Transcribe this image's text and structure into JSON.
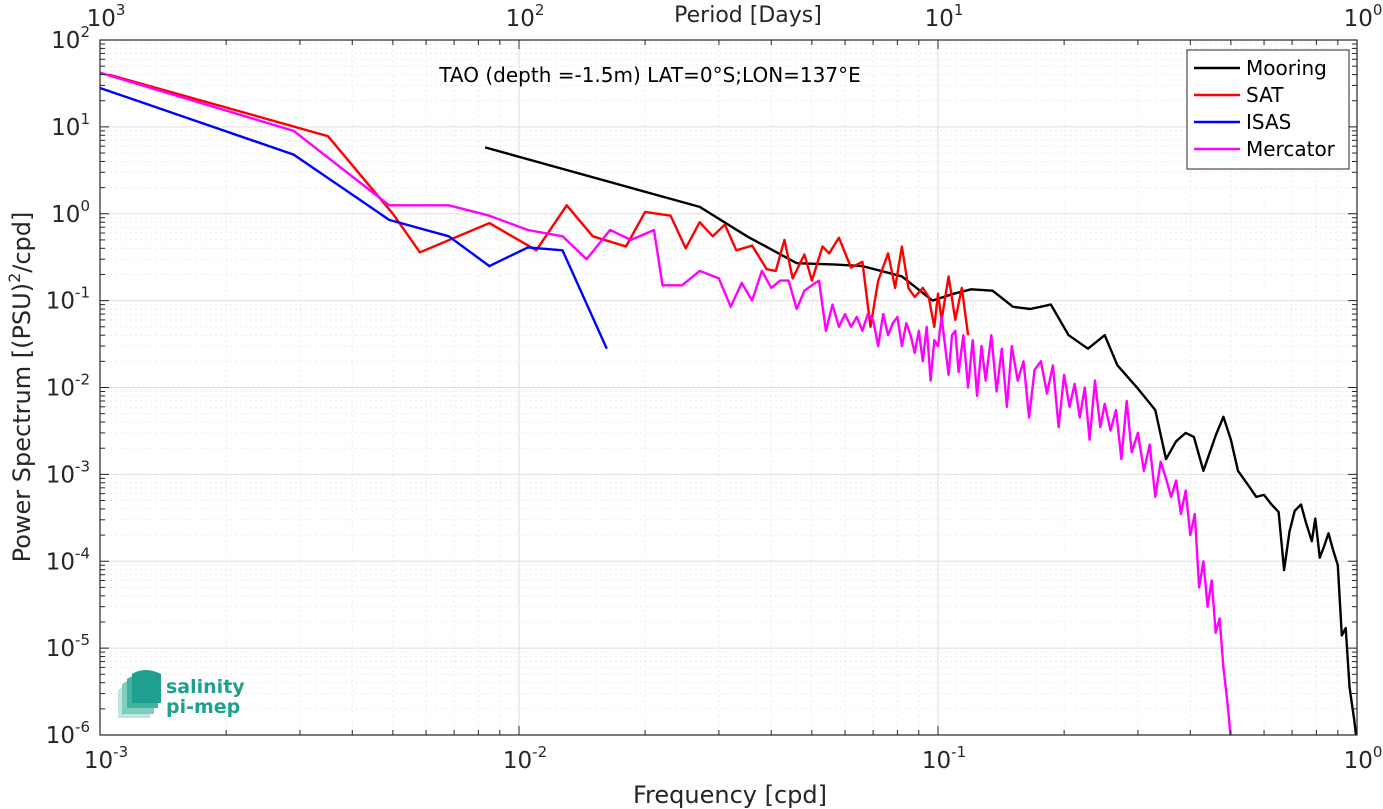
{
  "chart_data": {
    "type": "line",
    "title": "TAO (depth =-1.5m) LAT=0°S;LON=137°E",
    "xlabel": "Frequency [cpd]",
    "ylabel_parts": [
      "Power Spectrum [(PSU)",
      "2",
      "/cpd]"
    ],
    "top_xlabel": "Period [Days]",
    "x_scale": "log",
    "y_scale": "log",
    "xlim": [
      0.001,
      1
    ],
    "ylim": [
      1e-06,
      100
    ],
    "grid": true,
    "legend_position": "top-right",
    "x_ticks": [
      {
        "value": 0.001,
        "base": "10",
        "exp": "-3"
      },
      {
        "value": 0.01,
        "base": "10",
        "exp": "-2"
      },
      {
        "value": 0.1,
        "base": "10",
        "exp": "-1"
      },
      {
        "value": 1,
        "base": "10",
        "exp": "0"
      }
    ],
    "top_ticks": [
      {
        "value": 0.001,
        "base": "10",
        "exp": "3"
      },
      {
        "value": 0.01,
        "base": "10",
        "exp": "2"
      },
      {
        "value": 0.1,
        "base": "10",
        "exp": "1"
      },
      {
        "value": 1,
        "base": "10",
        "exp": "0"
      }
    ],
    "y_ticks": [
      {
        "value": 100,
        "base": "10",
        "exp": "2"
      },
      {
        "value": 10,
        "base": "10",
        "exp": "1"
      },
      {
        "value": 1,
        "base": "10",
        "exp": "0"
      },
      {
        "value": 0.1,
        "base": "10",
        "exp": "-1"
      },
      {
        "value": 0.01,
        "base": "10",
        "exp": "-2"
      },
      {
        "value": 0.001,
        "base": "10",
        "exp": "-3"
      },
      {
        "value": 0.0001,
        "base": "10",
        "exp": "-4"
      },
      {
        "value": 1e-05,
        "base": "10",
        "exp": "-5"
      },
      {
        "value": 1e-06,
        "base": "10",
        "exp": "-6"
      }
    ],
    "series": [
      {
        "name": "Mooring",
        "color": "#000000",
        "points": [
          [
            0.0083,
            5.8
          ],
          [
            0.027,
            1.2
          ],
          [
            0.035,
            0.55
          ],
          [
            0.046,
            0.27
          ],
          [
            0.057,
            0.26
          ],
          [
            0.066,
            0.25
          ],
          [
            0.082,
            0.19
          ],
          [
            0.097,
            0.1
          ],
          [
            0.109,
            0.12
          ],
          [
            0.12,
            0.135
          ],
          [
            0.135,
            0.13
          ],
          [
            0.151,
            0.085
          ],
          [
            0.166,
            0.08
          ],
          [
            0.186,
            0.09
          ],
          [
            0.205,
            0.04
          ],
          [
            0.228,
            0.028
          ],
          [
            0.25,
            0.04
          ],
          [
            0.268,
            0.018
          ],
          [
            0.3,
            0.0097
          ],
          [
            0.33,
            0.0055
          ],
          [
            0.35,
            0.0015
          ],
          [
            0.37,
            0.0024
          ],
          [
            0.39,
            0.003
          ],
          [
            0.408,
            0.0027
          ],
          [
            0.43,
            0.0011
          ],
          [
            0.46,
            0.0028
          ],
          [
            0.48,
            0.0046
          ],
          [
            0.5,
            0.0025
          ],
          [
            0.52,
            0.0011
          ],
          [
            0.55,
            0.00075
          ],
          [
            0.575,
            0.00055
          ],
          [
            0.6,
            0.00058
          ],
          [
            0.625,
            0.00045
          ],
          [
            0.65,
            0.00037
          ],
          [
            0.67,
            7.9e-05
          ],
          [
            0.69,
            0.00022
          ],
          [
            0.71,
            0.00038
          ],
          [
            0.735,
            0.00045
          ],
          [
            0.755,
            0.00028
          ],
          [
            0.78,
            0.00017
          ],
          [
            0.795,
            0.00031
          ],
          [
            0.815,
            0.00011
          ],
          [
            0.835,
            0.00015
          ],
          [
            0.855,
            0.00021
          ],
          [
            0.875,
            0.00014
          ],
          [
            0.9,
            9e-05
          ],
          [
            0.92,
            1.4e-05
          ],
          [
            0.94,
            1.7e-05
          ],
          [
            0.96,
            3.5e-06
          ],
          [
            0.985,
            1.5e-06
          ],
          [
            1.0,
            8e-07
          ]
        ]
      },
      {
        "name": "SAT",
        "color": "#ff0000",
        "points": [
          [
            0.00105,
            40
          ],
          [
            0.0035,
            7.8
          ],
          [
            0.005,
            1.0
          ],
          [
            0.0058,
            0.36
          ],
          [
            0.0085,
            0.78
          ],
          [
            0.011,
            0.38
          ],
          [
            0.013,
            1.25
          ],
          [
            0.015,
            0.55
          ],
          [
            0.018,
            0.42
          ],
          [
            0.02,
            1.05
          ],
          [
            0.023,
            0.95
          ],
          [
            0.025,
            0.4
          ],
          [
            0.027,
            0.8
          ],
          [
            0.029,
            0.55
          ],
          [
            0.031,
            0.75
          ],
          [
            0.033,
            0.38
          ],
          [
            0.036,
            0.43
          ],
          [
            0.039,
            0.23
          ],
          [
            0.041,
            0.22
          ],
          [
            0.043,
            0.5
          ],
          [
            0.045,
            0.18
          ],
          [
            0.048,
            0.34
          ],
          [
            0.05,
            0.17
          ],
          [
            0.053,
            0.42
          ],
          [
            0.055,
            0.35
          ],
          [
            0.058,
            0.53
          ],
          [
            0.062,
            0.24
          ],
          [
            0.066,
            0.28
          ],
          [
            0.069,
            0.05
          ],
          [
            0.072,
            0.17
          ],
          [
            0.076,
            0.35
          ],
          [
            0.079,
            0.14
          ],
          [
            0.082,
            0.42
          ],
          [
            0.085,
            0.14
          ],
          [
            0.088,
            0.11
          ],
          [
            0.092,
            0.14
          ],
          [
            0.095,
            0.11
          ],
          [
            0.098,
            0.05
          ],
          [
            0.1,
            0.12
          ],
          [
            0.102,
            0.06
          ],
          [
            0.106,
            0.19
          ],
          [
            0.11,
            0.06
          ],
          [
            0.114,
            0.14
          ],
          [
            0.118,
            0.04
          ]
        ]
      },
      {
        "name": "ISAS",
        "color": "#0000ff",
        "points": [
          [
            0.001,
            28
          ],
          [
            0.0029,
            4.8
          ],
          [
            0.0049,
            0.85
          ],
          [
            0.0068,
            0.55
          ],
          [
            0.0085,
            0.25
          ],
          [
            0.0105,
            0.41
          ],
          [
            0.0127,
            0.38
          ],
          [
            0.0162,
            0.028
          ]
        ]
      },
      {
        "name": "Mercator",
        "color": "#ff00ff",
        "points": [
          [
            0.001,
            42
          ],
          [
            0.0029,
            9.0
          ],
          [
            0.0049,
            1.25
          ],
          [
            0.0068,
            1.25
          ],
          [
            0.0085,
            0.95
          ],
          [
            0.0105,
            0.65
          ],
          [
            0.0127,
            0.55
          ],
          [
            0.0145,
            0.3
          ],
          [
            0.0165,
            0.65
          ],
          [
            0.0185,
            0.5
          ],
          [
            0.021,
            0.65
          ],
          [
            0.022,
            0.15
          ],
          [
            0.0245,
            0.15
          ],
          [
            0.027,
            0.22
          ],
          [
            0.03,
            0.18
          ],
          [
            0.032,
            0.085
          ],
          [
            0.034,
            0.16
          ],
          [
            0.036,
            0.1
          ],
          [
            0.038,
            0.22
          ],
          [
            0.04,
            0.14
          ],
          [
            0.042,
            0.17
          ],
          [
            0.044,
            0.17
          ],
          [
            0.046,
            0.08
          ],
          [
            0.048,
            0.13
          ],
          [
            0.05,
            0.15
          ],
          [
            0.052,
            0.17
          ],
          [
            0.054,
            0.045
          ],
          [
            0.056,
            0.09
          ],
          [
            0.058,
            0.05
          ],
          [
            0.06,
            0.07
          ],
          [
            0.062,
            0.05
          ],
          [
            0.064,
            0.065
          ],
          [
            0.066,
            0.045
          ],
          [
            0.068,
            0.07
          ],
          [
            0.07,
            0.06
          ],
          [
            0.072,
            0.03
          ],
          [
            0.074,
            0.07
          ],
          [
            0.076,
            0.04
          ],
          [
            0.078,
            0.055
          ],
          [
            0.08,
            0.065
          ],
          [
            0.082,
            0.03
          ],
          [
            0.084,
            0.055
          ],
          [
            0.086,
            0.04
          ],
          [
            0.088,
            0.025
          ],
          [
            0.09,
            0.045
          ],
          [
            0.092,
            0.02
          ],
          [
            0.094,
            0.05
          ],
          [
            0.096,
            0.012
          ],
          [
            0.098,
            0.035
          ],
          [
            0.1,
            0.03
          ],
          [
            0.102,
            0.065
          ],
          [
            0.104,
            0.03
          ],
          [
            0.106,
            0.014
          ],
          [
            0.108,
            0.04
          ],
          [
            0.11,
            0.045
          ],
          [
            0.112,
            0.015
          ],
          [
            0.115,
            0.04
          ],
          [
            0.118,
            0.01
          ],
          [
            0.121,
            0.035
          ],
          [
            0.124,
            0.008
          ],
          [
            0.127,
            0.03
          ],
          [
            0.13,
            0.012
          ],
          [
            0.134,
            0.04
          ],
          [
            0.138,
            0.009
          ],
          [
            0.142,
            0.028
          ],
          [
            0.146,
            0.006
          ],
          [
            0.15,
            0.03
          ],
          [
            0.155,
            0.012
          ],
          [
            0.16,
            0.02
          ],
          [
            0.165,
            0.0045
          ],
          [
            0.17,
            0.016
          ],
          [
            0.176,
            0.02
          ],
          [
            0.182,
            0.0085
          ],
          [
            0.188,
            0.018
          ],
          [
            0.194,
            0.0035
          ],
          [
            0.2,
            0.014
          ],
          [
            0.206,
            0.006
          ],
          [
            0.212,
            0.011
          ],
          [
            0.218,
            0.0045
          ],
          [
            0.224,
            0.01
          ],
          [
            0.23,
            0.0025
          ],
          [
            0.237,
            0.012
          ],
          [
            0.244,
            0.0035
          ],
          [
            0.25,
            0.0065
          ],
          [
            0.258,
            0.0032
          ],
          [
            0.266,
            0.0055
          ],
          [
            0.274,
            0.0015
          ],
          [
            0.282,
            0.007
          ],
          [
            0.29,
            0.0018
          ],
          [
            0.3,
            0.003
          ],
          [
            0.31,
            0.0011
          ],
          [
            0.32,
            0.0022
          ],
          [
            0.33,
            0.00055
          ],
          [
            0.34,
            0.0014
          ],
          [
            0.35,
            0.0009
          ],
          [
            0.36,
            0.00055
          ],
          [
            0.37,
            0.00085
          ],
          [
            0.38,
            0.00035
          ],
          [
            0.39,
            0.00065
          ],
          [
            0.4,
            0.0002
          ],
          [
            0.41,
            0.00035
          ],
          [
            0.42,
            5e-05
          ],
          [
            0.43,
            0.0001
          ],
          [
            0.44,
            3e-05
          ],
          [
            0.45,
            6e-05
          ],
          [
            0.46,
            1.5e-05
          ],
          [
            0.47,
            2.2e-05
          ],
          [
            0.48,
            6e-06
          ],
          [
            0.49,
            2.5e-06
          ],
          [
            0.5,
            9e-07
          ]
        ]
      }
    ]
  },
  "logo": {
    "line1": "salinity",
    "line2": "pi-mep"
  }
}
